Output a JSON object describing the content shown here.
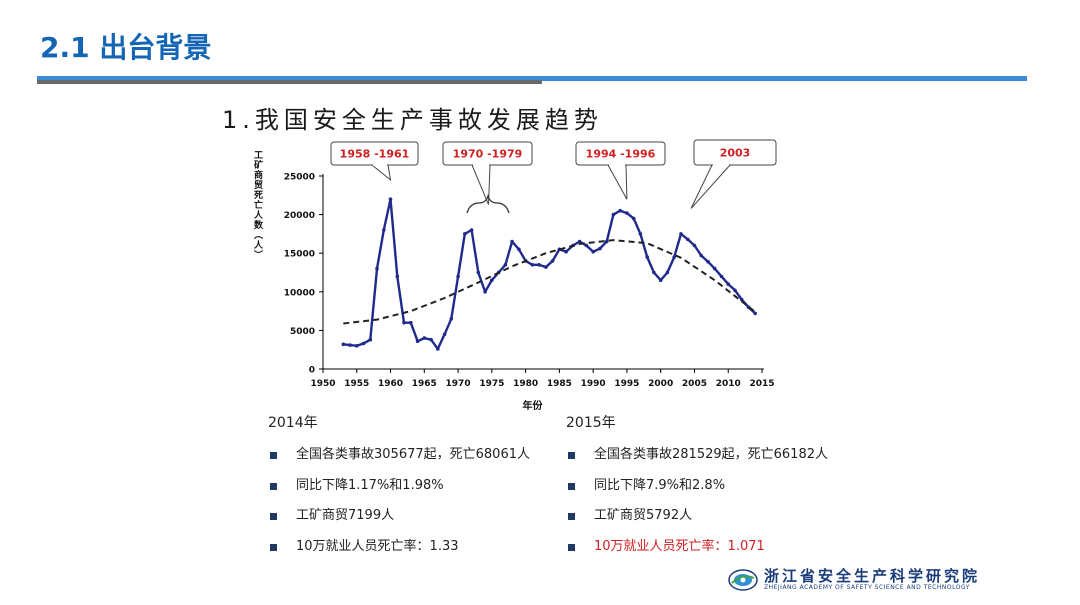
{
  "header": {
    "title": "2.1 出台背景"
  },
  "chart_data": {
    "type": "line",
    "title": "1.我国安全生产事故发展趋势",
    "xlabel": "年份",
    "ylabel": "工矿商贸死亡人数（人）",
    "xlim": [
      1950,
      2015
    ],
    "ylim": [
      0,
      25000
    ],
    "xticks": [
      1950,
      1955,
      1960,
      1965,
      1970,
      1975,
      1980,
      1985,
      1990,
      1995,
      2000,
      2005,
      2010,
      2015
    ],
    "yticks": [
      0,
      5000,
      10000,
      15000,
      20000,
      25000
    ],
    "series": [
      {
        "x": [
          1953,
          1954,
          1955,
          1956,
          1957,
          1958,
          1959,
          1960,
          1961,
          1962,
          1963,
          1964,
          1965,
          1966,
          1967,
          1968,
          1969,
          1970,
          1971,
          1972,
          1973,
          1974,
          1975,
          1976,
          1977,
          1978,
          1979,
          1980,
          1981,
          1982,
          1983,
          1984,
          1985,
          1986,
          1987,
          1988,
          1989,
          1990,
          1991,
          1992,
          1993,
          1994,
          1995,
          1996,
          1997,
          1998,
          1999,
          2000,
          2001,
          2002,
          2003,
          2004,
          2005,
          2006,
          2007,
          2008,
          2009,
          2010,
          2011,
          2012,
          2013,
          2014
        ],
        "y": [
          3200,
          3100,
          3000,
          3300,
          3800,
          13000,
          18000,
          22000,
          12000,
          6000,
          6000,
          3600,
          4000,
          3800,
          2600,
          4500,
          6500,
          12000,
          17500,
          18000,
          12500,
          10000,
          11500,
          12500,
          13500,
          16500,
          15500,
          14000,
          13500,
          13500,
          13200,
          14000,
          15500,
          15200,
          16000,
          16500,
          16000,
          15200,
          15600,
          16500,
          20000,
          20500,
          20200,
          19500,
          17500,
          14500,
          12500,
          11500,
          12500,
          14500,
          17500,
          16800,
          16000,
          14700,
          13900,
          13000,
          12000,
          11000,
          10200,
          9000,
          8000,
          7200
        ]
      },
      {
        "style": "dashed",
        "x": [
          1953,
          1958,
          1963,
          1968,
          1973,
          1978,
          1983,
          1988,
          1993,
          1998,
          2003,
          2008,
          2014
        ],
        "y": [
          5900,
          6400,
          7500,
          9200,
          11200,
          13300,
          15000,
          16200,
          16700,
          16300,
          14400,
          11500,
          7400
        ]
      }
    ],
    "annotations": [
      {
        "label": "1958 -1961",
        "target_x": 1960,
        "target_y": 24500
      },
      {
        "label": "1970 -1979",
        "target_x": 1974.5,
        "target_y": 21300
      },
      {
        "label": "1994 -1996",
        "target_x": 1995,
        "target_y": 22000
      },
      {
        "label": "2003",
        "target_x": 2004.5,
        "target_y": 20800
      }
    ]
  },
  "stats": [
    {
      "year": "2014年",
      "items": [
        "全国各类事故305677起，死亡68061人",
        "同比下降1.17%和1.98%",
        "工矿商贸7199人",
        "10万就业人员死亡率：1.33"
      ]
    },
    {
      "year": "2015年",
      "items": [
        "全国各类事故281529起，死亡66182人",
        "同比下降7.9%和2.8%",
        "工矿商贸5792人",
        "10万就业人员死亡率：1.071"
      ]
    }
  ],
  "logo": {
    "name_cn": "浙江省安全生产科学研究院",
    "name_en": "ZHEJIANG ACADEMY OF SAFETY SCIENCE AND TECHNOLOGY"
  },
  "colors": {
    "title": "#1565b5",
    "series": "#1f2a8c",
    "callout": "#d22020",
    "highlight": "#d22020",
    "bullet": "#1f3864"
  }
}
